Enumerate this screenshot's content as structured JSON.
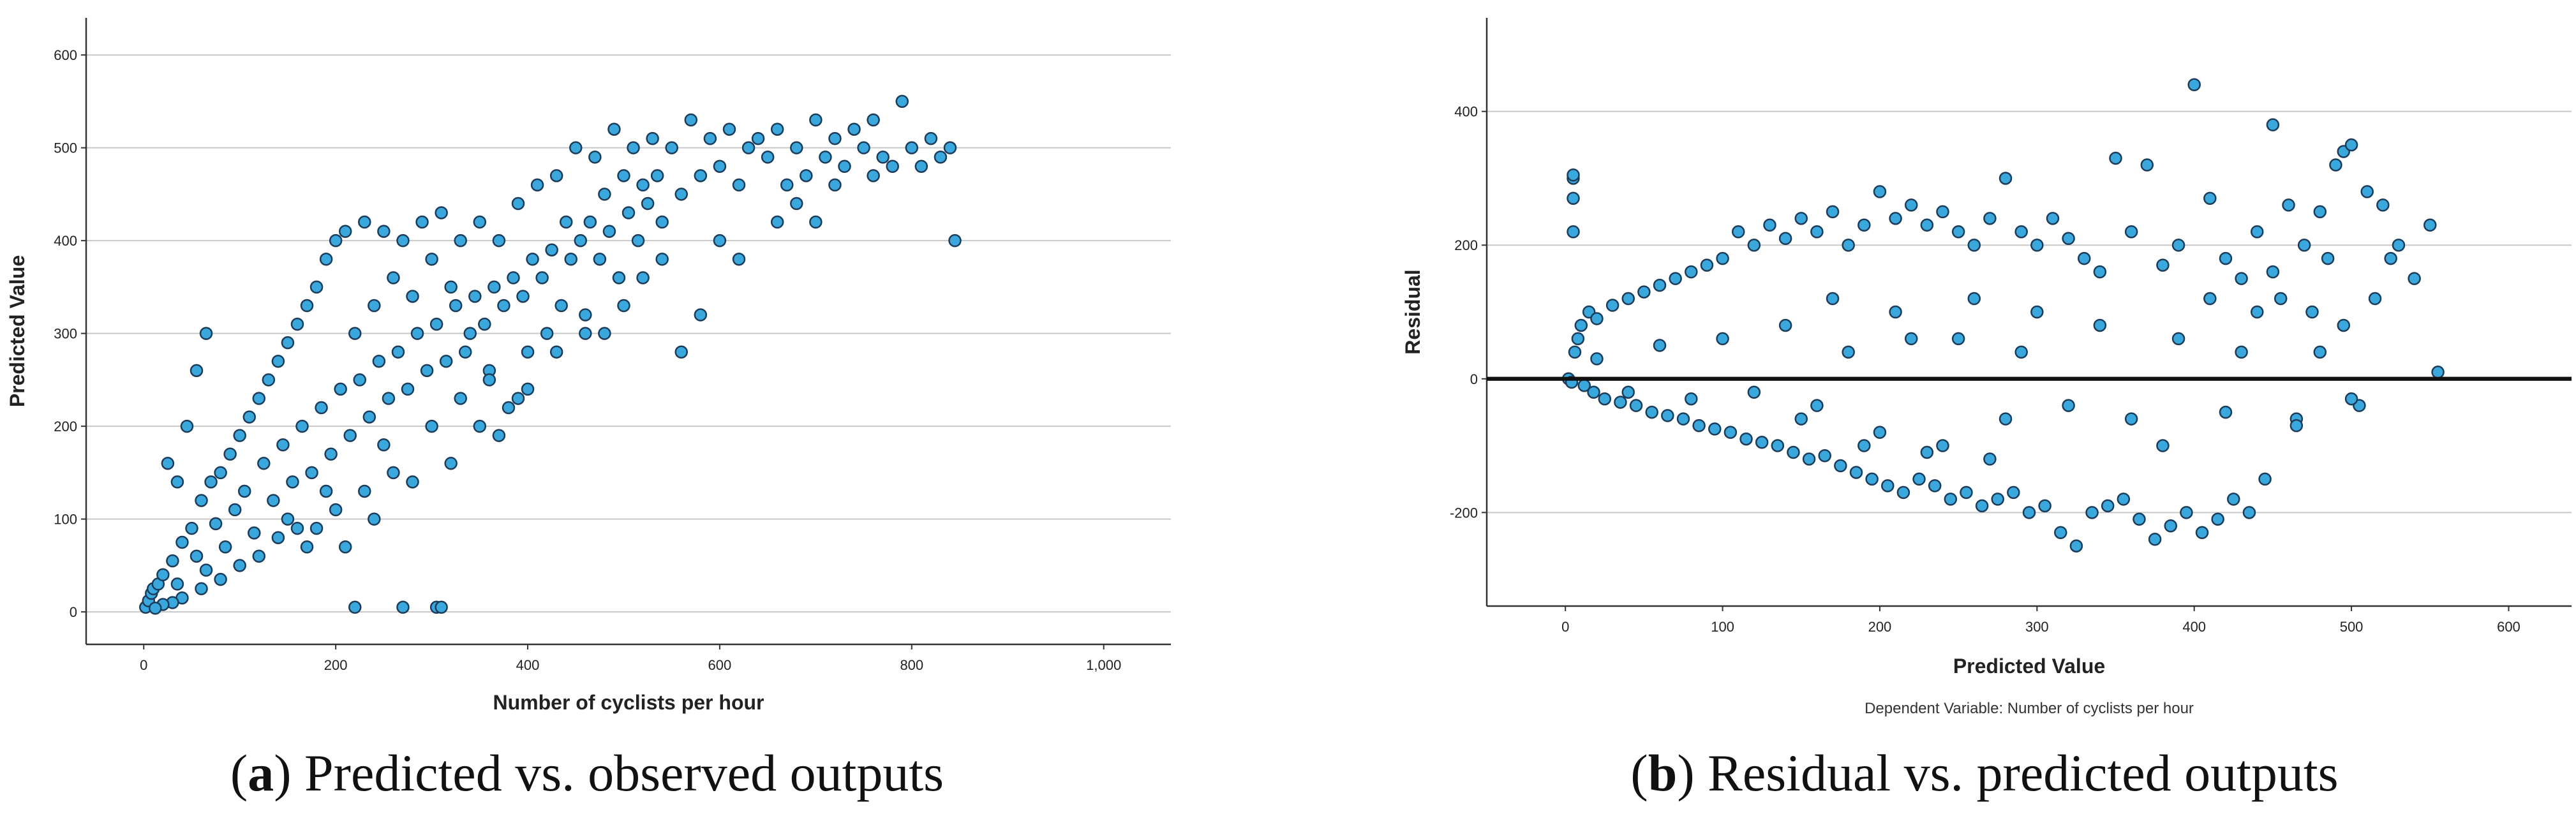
{
  "chart_data": [
    {
      "type": "scatter",
      "panel": "a",
      "caption_letter": "a",
      "caption_text": "Predicted vs. observed outputs",
      "xlabel": "Number of cyclists per hour",
      "ylabel": "Predicted Value",
      "xlim": [
        -60,
        1070
      ],
      "ylim": [
        -35,
        640
      ],
      "xticks": [
        0,
        200,
        400,
        600,
        800,
        1000
      ],
      "xtick_labels": [
        "0",
        "200",
        "400",
        "600",
        "800",
        "1,000"
      ],
      "yticks": [
        0,
        100,
        200,
        300,
        400,
        500,
        600
      ],
      "ytick_labels": [
        "0",
        "100",
        "200",
        "300",
        "400",
        "500",
        "600"
      ],
      "grid": "horizontal",
      "marker_color": "#3aa8dc",
      "marker_edge": "#1b3c5a",
      "points": [
        [
          2,
          5
        ],
        [
          5,
          12
        ],
        [
          8,
          20
        ],
        [
          10,
          25
        ],
        [
          15,
          30
        ],
        [
          20,
          40
        ],
        [
          30,
          55
        ],
        [
          35,
          30
        ],
        [
          40,
          75
        ],
        [
          50,
          90
        ],
        [
          55,
          60
        ],
        [
          60,
          120
        ],
        [
          65,
          45
        ],
        [
          70,
          140
        ],
        [
          75,
          95
        ],
        [
          80,
          150
        ],
        [
          85,
          70
        ],
        [
          90,
          170
        ],
        [
          95,
          110
        ],
        [
          100,
          190
        ],
        [
          105,
          130
        ],
        [
          110,
          210
        ],
        [
          115,
          85
        ],
        [
          120,
          230
        ],
        [
          125,
          160
        ],
        [
          130,
          250
        ],
        [
          135,
          120
        ],
        [
          140,
          270
        ],
        [
          145,
          180
        ],
        [
          150,
          290
        ],
        [
          155,
          140
        ],
        [
          160,
          310
        ],
        [
          165,
          200
        ],
        [
          170,
          330
        ],
        [
          175,
          150
        ],
        [
          180,
          350
        ],
        [
          185,
          220
        ],
        [
          190,
          380
        ],
        [
          195,
          170
        ],
        [
          200,
          400
        ],
        [
          205,
          240
        ],
        [
          210,
          410
        ],
        [
          215,
          190
        ],
        [
          220,
          300
        ],
        [
          225,
          250
        ],
        [
          230,
          420
        ],
        [
          235,
          210
        ],
        [
          240,
          330
        ],
        [
          245,
          270
        ],
        [
          250,
          410
        ],
        [
          255,
          230
        ],
        [
          260,
          360
        ],
        [
          265,
          280
        ],
        [
          270,
          400
        ],
        [
          275,
          240
        ],
        [
          280,
          340
        ],
        [
          285,
          300
        ],
        [
          290,
          420
        ],
        [
          295,
          260
        ],
        [
          300,
          380
        ],
        [
          305,
          310
        ],
        [
          310,
          430
        ],
        [
          315,
          270
        ],
        [
          320,
          350
        ],
        [
          325,
          330
        ],
        [
          330,
          400
        ],
        [
          335,
          280
        ],
        [
          340,
          300
        ],
        [
          345,
          340
        ],
        [
          350,
          420
        ],
        [
          355,
          310
        ],
        [
          360,
          260
        ],
        [
          365,
          350
        ],
        [
          370,
          400
        ],
        [
          375,
          330
        ],
        [
          380,
          220
        ],
        [
          385,
          360
        ],
        [
          390,
          440
        ],
        [
          395,
          340
        ],
        [
          400,
          280
        ],
        [
          405,
          380
        ],
        [
          410,
          460
        ],
        [
          415,
          360
        ],
        [
          420,
          300
        ],
        [
          425,
          390
        ],
        [
          430,
          470
        ],
        [
          435,
          330
        ],
        [
          440,
          420
        ],
        [
          445,
          380
        ],
        [
          450,
          500
        ],
        [
          455,
          400
        ],
        [
          460,
          320
        ],
        [
          465,
          420
        ],
        [
          470,
          490
        ],
        [
          475,
          380
        ],
        [
          480,
          450
        ],
        [
          485,
          410
        ],
        [
          490,
          520
        ],
        [
          495,
          360
        ],
        [
          500,
          470
        ],
        [
          505,
          430
        ],
        [
          510,
          500
        ],
        [
          515,
          400
        ],
        [
          520,
          460
        ],
        [
          525,
          440
        ],
        [
          530,
          510
        ],
        [
          535,
          470
        ],
        [
          540,
          420
        ],
        [
          550,
          500
        ],
        [
          560,
          450
        ],
        [
          570,
          530
        ],
        [
          580,
          470
        ],
        [
          590,
          510
        ],
        [
          600,
          480
        ],
        [
          610,
          520
        ],
        [
          620,
          460
        ],
        [
          630,
          500
        ],
        [
          640,
          510
        ],
        [
          650,
          490
        ],
        [
          660,
          520
        ],
        [
          670,
          460
        ],
        [
          680,
          500
        ],
        [
          690,
          470
        ],
        [
          700,
          530
        ],
        [
          710,
          490
        ],
        [
          720,
          510
        ],
        [
          730,
          480
        ],
        [
          740,
          520
        ],
        [
          750,
          500
        ],
        [
          760,
          530
        ],
        [
          770,
          490
        ],
        [
          780,
          480
        ],
        [
          790,
          550
        ],
        [
          800,
          500
        ],
        [
          810,
          480
        ],
        [
          820,
          510
        ],
        [
          830,
          490
        ],
        [
          840,
          500
        ],
        [
          845,
          400
        ],
        [
          35,
          140
        ],
        [
          45,
          200
        ],
        [
          55,
          260
        ],
        [
          65,
          300
        ],
        [
          25,
          160
        ],
        [
          180,
          90
        ],
        [
          200,
          110
        ],
        [
          230,
          130
        ],
        [
          260,
          150
        ],
        [
          220,
          5
        ],
        [
          270,
          5
        ],
        [
          305,
          5
        ],
        [
          310,
          5
        ],
        [
          190,
          130
        ],
        [
          210,
          70
        ],
        [
          240,
          100
        ],
        [
          280,
          140
        ],
        [
          320,
          160
        ],
        [
          350,
          200
        ],
        [
          370,
          190
        ],
        [
          390,
          230
        ],
        [
          560,
          280
        ],
        [
          580,
          320
        ],
        [
          500,
          330
        ],
        [
          480,
          300
        ],
        [
          520,
          360
        ],
        [
          540,
          380
        ],
        [
          600,
          400
        ],
        [
          620,
          380
        ],
        [
          660,
          420
        ],
        [
          680,
          440
        ],
        [
          700,
          420
        ],
        [
          720,
          460
        ],
        [
          760,
          470
        ],
        [
          120,
          60
        ],
        [
          140,
          80
        ],
        [
          160,
          90
        ],
        [
          100,
          50
        ],
        [
          80,
          35
        ],
        [
          60,
          25
        ],
        [
          40,
          15
        ],
        [
          30,
          10
        ],
        [
          20,
          8
        ],
        [
          12,
          4
        ],
        [
          150,
          100
        ],
        [
          170,
          70
        ],
        [
          250,
          180
        ],
        [
          300,
          200
        ],
        [
          330,
          230
        ],
        [
          360,
          250
        ],
        [
          400,
          240
        ],
        [
          430,
          280
        ],
        [
          460,
          300
        ]
      ]
    },
    {
      "type": "scatter",
      "panel": "b",
      "caption_letter": "b",
      "caption_text": "Residual vs. predicted outputs",
      "xlabel": "Predicted Value",
      "ylabel": "Residual",
      "subnote": "Dependent Variable: Number of cyclists per hour",
      "xlim": [
        -50,
        640
      ],
      "ylim": [
        -340,
        540
      ],
      "xticks": [
        0,
        100,
        200,
        300,
        400,
        500,
        600
      ],
      "xtick_labels": [
        "0",
        "100",
        "200",
        "300",
        "400",
        "500",
        "600"
      ],
      "yticks": [
        -200,
        0,
        200,
        400
      ],
      "ytick_labels": [
        "-200",
        "0",
        "200",
        "400"
      ],
      "grid": "horizontal",
      "reference_line_y": 0,
      "marker_color": "#3aa8dc",
      "marker_edge": "#1b3c5a",
      "points": [
        [
          5,
          300
        ],
        [
          5,
          305
        ],
        [
          5,
          270
        ],
        [
          5,
          220
        ],
        [
          2,
          0
        ],
        [
          4,
          -5
        ],
        [
          6,
          40
        ],
        [
          8,
          60
        ],
        [
          10,
          80
        ],
        [
          12,
          -10
        ],
        [
          15,
          100
        ],
        [
          18,
          -20
        ],
        [
          20,
          90
        ],
        [
          25,
          -30
        ],
        [
          30,
          110
        ],
        [
          35,
          -35
        ],
        [
          40,
          120
        ],
        [
          45,
          -40
        ],
        [
          50,
          130
        ],
        [
          55,
          -50
        ],
        [
          60,
          140
        ],
        [
          65,
          -55
        ],
        [
          70,
          150
        ],
        [
          75,
          -60
        ],
        [
          80,
          160
        ],
        [
          85,
          -70
        ],
        [
          90,
          170
        ],
        [
          95,
          -75
        ],
        [
          100,
          180
        ],
        [
          105,
          -80
        ],
        [
          110,
          220
        ],
        [
          115,
          -90
        ],
        [
          120,
          200
        ],
        [
          125,
          -95
        ],
        [
          130,
          230
        ],
        [
          135,
          -100
        ],
        [
          140,
          210
        ],
        [
          145,
          -110
        ],
        [
          150,
          240
        ],
        [
          155,
          -120
        ],
        [
          160,
          220
        ],
        [
          165,
          -115
        ],
        [
          170,
          250
        ],
        [
          175,
          -130
        ],
        [
          180,
          200
        ],
        [
          185,
          -140
        ],
        [
          190,
          230
        ],
        [
          195,
          -150
        ],
        [
          200,
          280
        ],
        [
          205,
          -160
        ],
        [
          210,
          240
        ],
        [
          215,
          -170
        ],
        [
          220,
          260
        ],
        [
          225,
          -150
        ],
        [
          230,
          230
        ],
        [
          235,
          -160
        ],
        [
          240,
          250
        ],
        [
          245,
          -180
        ],
        [
          250,
          220
        ],
        [
          255,
          -170
        ],
        [
          260,
          200
        ],
        [
          265,
          -190
        ],
        [
          270,
          240
        ],
        [
          275,
          -180
        ],
        [
          280,
          300
        ],
        [
          285,
          -170
        ],
        [
          290,
          220
        ],
        [
          295,
          -200
        ],
        [
          300,
          200
        ],
        [
          305,
          -190
        ],
        [
          310,
          240
        ],
        [
          315,
          -230
        ],
        [
          320,
          210
        ],
        [
          325,
          -250
        ],
        [
          330,
          180
        ],
        [
          335,
          -200
        ],
        [
          340,
          160
        ],
        [
          345,
          -190
        ],
        [
          350,
          330
        ],
        [
          355,
          -180
        ],
        [
          360,
          220
        ],
        [
          365,
          -210
        ],
        [
          370,
          320
        ],
        [
          375,
          -240
        ],
        [
          380,
          170
        ],
        [
          385,
          -220
        ],
        [
          390,
          200
        ],
        [
          395,
          -200
        ],
        [
          400,
          440
        ],
        [
          405,
          -230
        ],
        [
          410,
          270
        ],
        [
          415,
          -210
        ],
        [
          420,
          180
        ],
        [
          425,
          -180
        ],
        [
          430,
          150
        ],
        [
          435,
          -200
        ],
        [
          440,
          220
        ],
        [
          445,
          -150
        ],
        [
          450,
          380
        ],
        [
          455,
          120
        ],
        [
          460,
          260
        ],
        [
          465,
          -60
        ],
        [
          470,
          200
        ],
        [
          475,
          100
        ],
        [
          480,
          250
        ],
        [
          485,
          180
        ],
        [
          490,
          320
        ],
        [
          495,
          340
        ],
        [
          500,
          350
        ],
        [
          505,
          -40
        ],
        [
          510,
          280
        ],
        [
          515,
          120
        ],
        [
          520,
          260
        ],
        [
          525,
          180
        ],
        [
          530,
          200
        ],
        [
          540,
          150
        ],
        [
          550,
          230
        ],
        [
          555,
          10
        ],
        [
          465,
          -70
        ],
        [
          480,
          40
        ],
        [
          495,
          80
        ],
        [
          500,
          -30
        ],
        [
          420,
          -50
        ],
        [
          430,
          40
        ],
        [
          440,
          100
        ],
        [
          450,
          160
        ],
        [
          380,
          -100
        ],
        [
          390,
          60
        ],
        [
          410,
          120
        ],
        [
          360,
          -60
        ],
        [
          340,
          80
        ],
        [
          320,
          -40
        ],
        [
          300,
          100
        ],
        [
          280,
          -60
        ],
        [
          260,
          120
        ],
        [
          240,
          -100
        ],
        [
          220,
          60
        ],
        [
          200,
          -80
        ],
        [
          180,
          40
        ],
        [
          160,
          -40
        ],
        [
          140,
          80
        ],
        [
          120,
          -20
        ],
        [
          100,
          60
        ],
        [
          80,
          -30
        ],
        [
          60,
          50
        ],
        [
          40,
          -20
        ],
        [
          20,
          30
        ],
        [
          150,
          -60
        ],
        [
          170,
          120
        ],
        [
          190,
          -100
        ],
        [
          210,
          100
        ],
        [
          230,
          -110
        ],
        [
          250,
          60
        ],
        [
          270,
          -120
        ],
        [
          290,
          40
        ]
      ]
    }
  ]
}
